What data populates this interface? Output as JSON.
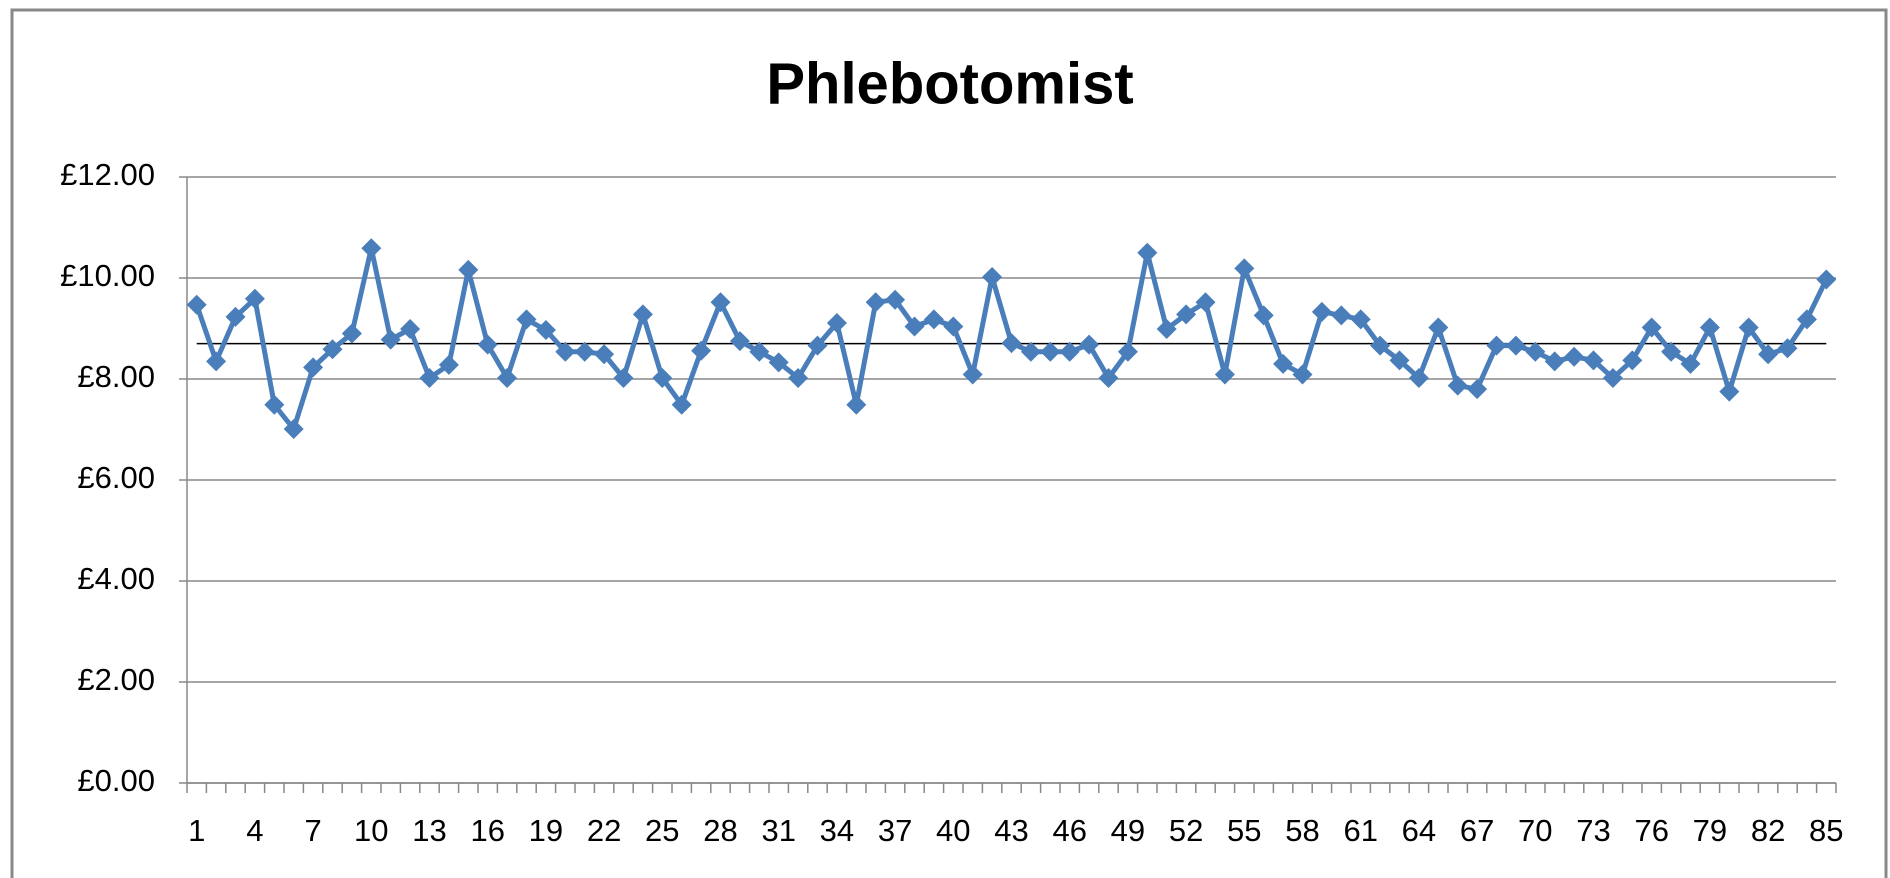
{
  "chart_data": {
    "type": "line",
    "title": "Phlebotomist",
    "categories": [
      "1",
      null,
      null,
      "4",
      null,
      null,
      "7",
      null,
      null,
      "10",
      null,
      null,
      "13",
      null,
      null,
      "16",
      null,
      null,
      "19",
      null,
      null,
      "22",
      null,
      null,
      "25",
      null,
      null,
      "28",
      null,
      null,
      "31",
      null,
      null,
      "34",
      null,
      null,
      "37",
      null,
      null,
      "40",
      null,
      null,
      "43",
      null,
      null,
      "46",
      null,
      null,
      "49",
      null,
      null,
      "52",
      null,
      null,
      "55",
      null,
      null,
      "58",
      null,
      null,
      "61",
      null,
      null,
      "64",
      null,
      null,
      "67",
      null,
      null,
      "70",
      null,
      null,
      "73",
      null,
      null,
      "76",
      null,
      null,
      "79",
      null,
      null,
      "82",
      null,
      null,
      "85"
    ],
    "series": [
      {
        "color": "#4a7ebb",
        "values": [
          9.47,
          8.35,
          9.23,
          9.59,
          7.49,
          7.01,
          8.23,
          8.59,
          8.9,
          10.59,
          8.78,
          8.99,
          8.02,
          8.28,
          10.16,
          8.68,
          8.02,
          9.18,
          8.97,
          8.54,
          8.54,
          8.49,
          8.02,
          9.28,
          8.02,
          7.49,
          8.56,
          9.52,
          8.75,
          8.54,
          8.33,
          8.02,
          8.66,
          9.11,
          7.49,
          9.52,
          9.57,
          9.04,
          9.18,
          9.04,
          8.09,
          10.02,
          8.71,
          8.54,
          8.54,
          8.54,
          8.68,
          8.02,
          8.54,
          10.5,
          8.99,
          9.28,
          9.52,
          8.09,
          10.19,
          9.26,
          8.3,
          8.09,
          9.33,
          9.26,
          9.18,
          8.66,
          8.37,
          8.02,
          9.02,
          7.87,
          7.8,
          8.66,
          8.66,
          8.54,
          8.35,
          8.44,
          8.37,
          8.02,
          8.37,
          9.02,
          8.54,
          8.3,
          9.02,
          7.75,
          9.02,
          8.49,
          8.61,
          9.18,
          9.97
        ]
      }
    ],
    "average_line": {
      "value": 8.7,
      "color": "#000000"
    },
    "ylim": [
      0,
      12
    ],
    "yticks": [
      {
        "value": 0,
        "label": "£0.00"
      },
      {
        "value": 2,
        "label": "£2.00"
      },
      {
        "value": 4,
        "label": "£4.00"
      },
      {
        "value": 6,
        "label": "£6.00"
      },
      {
        "value": 8,
        "label": "£8.00"
      },
      {
        "value": 10,
        "label": "£10.00"
      },
      {
        "value": 12,
        "label": "£12.00"
      }
    ],
    "grid": true,
    "marker": "diamond"
  }
}
